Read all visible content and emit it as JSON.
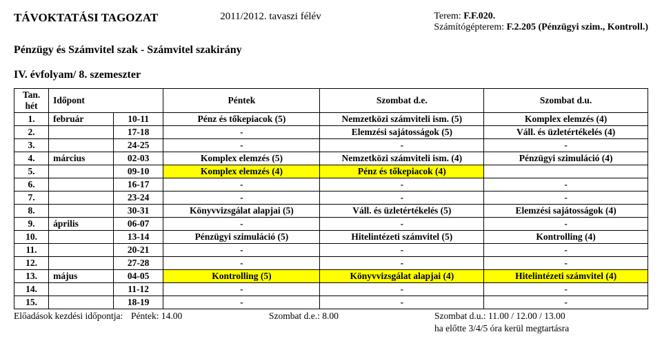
{
  "header": {
    "title": "TÁVOKTATÁSI TAGOZAT",
    "semester": "2011/2012. tavaszi félév",
    "room_label": "Terem:",
    "room_value": "F.F.020.",
    "itroom_label": "Számítógépterem:",
    "itroom_value": "F.2.205 (Pénzügyi szim., Kontroll.)",
    "subtitle": "Pénzügy és Számvitel szak - Számvitel szakirány",
    "year_semester": "IV. évfolyam/ 8. szemeszter"
  },
  "table": {
    "columns": {
      "tanhet": "Tan. hét",
      "idopont": "Időpont",
      "pentek": "Péntek",
      "szombat_de": "Szombat d.e.",
      "szombat_du": "Szombat d.u."
    },
    "rows": [
      {
        "n": "1.",
        "mon": "február",
        "date": "10-11",
        "p": "Pénz és tőkepiacok (5)",
        "sd": "Nemzetközi számviteli ism. (5)",
        "su": "Komplex elemzés (4)"
      },
      {
        "n": "2.",
        "mon": "",
        "date": "17-18",
        "p": "-",
        "sd": "Elemzési sajátosságok (5)",
        "su": "Váll. és üzletértékelés (4)"
      },
      {
        "n": "3.",
        "mon": "",
        "date": "24-25",
        "p": "-",
        "sd": "-",
        "su": "-"
      },
      {
        "n": "4.",
        "mon": "március",
        "date": "02-03",
        "p": "Komplex elemzés (5)",
        "sd": "Nemzetközi számviteli ism. (4)",
        "su": "Pénzügyi szimuláció (4)"
      },
      {
        "n": "5.",
        "mon": "",
        "date": "09-10",
        "p": "Komplex elemzés (4)",
        "sd": "Pénz és tőkepiacok (4)",
        "su": "",
        "hl_p": true,
        "hl_sd": true
      },
      {
        "n": "6.",
        "mon": "",
        "date": "16-17",
        "p": "-",
        "sd": "-",
        "su": "-"
      },
      {
        "n": "7.",
        "mon": "",
        "date": "23-24",
        "p": "-",
        "sd": "-",
        "su": "-"
      },
      {
        "n": "8.",
        "mon": "",
        "date": "30-31",
        "p": "Könyvvizsgálat alapjai (5)",
        "sd": "Váll. és üzletértékelés (5)",
        "su": "Elemzési sajátosságok (4)"
      },
      {
        "n": "9.",
        "mon": "április",
        "date": "06-07",
        "p": "-",
        "sd": "-",
        "su": "-"
      },
      {
        "n": "10.",
        "mon": "",
        "date": "13-14",
        "p": "Pénzügyi szimuláció (5)",
        "sd": "Hitelintézeti számvitel (5)",
        "su": "Kontrolling (4)"
      },
      {
        "n": "11.",
        "mon": "",
        "date": "20-21",
        "p": "-",
        "sd": "-",
        "su": "-"
      },
      {
        "n": "12.",
        "mon": "",
        "date": "27-28",
        "p": "-",
        "sd": "-",
        "su": "-"
      },
      {
        "n": "13.",
        "mon": "május",
        "date": "04-05",
        "p": "Kontrolling (5)",
        "sd": "Könyvvizsgálat alapjai (4)",
        "su": "Hitelintézeti számvitel (4)",
        "hl_p": true,
        "hl_sd": true,
        "hl_su": true
      },
      {
        "n": "14.",
        "mon": "",
        "date": "11-12",
        "p": "-",
        "sd": "-",
        "su": "-"
      },
      {
        "n": "15.",
        "mon": "",
        "date": "18-19",
        "p": "-",
        "sd": "-",
        "su": "-"
      }
    ]
  },
  "footer": {
    "label": "Előadások kezdési időpontja:",
    "pentek": "Péntek: 14.00",
    "szde": "Szombat d.e.: 8.00",
    "szdu": "Szombat d.u.: 11.00 / 12.00 / 13.00",
    "sub": "ha előtte 3/4/5 óra kerül megtartásra"
  },
  "colors": {
    "highlight": "#ffff00",
    "border": "#000000",
    "background": "#ffffff",
    "text": "#000000"
  }
}
